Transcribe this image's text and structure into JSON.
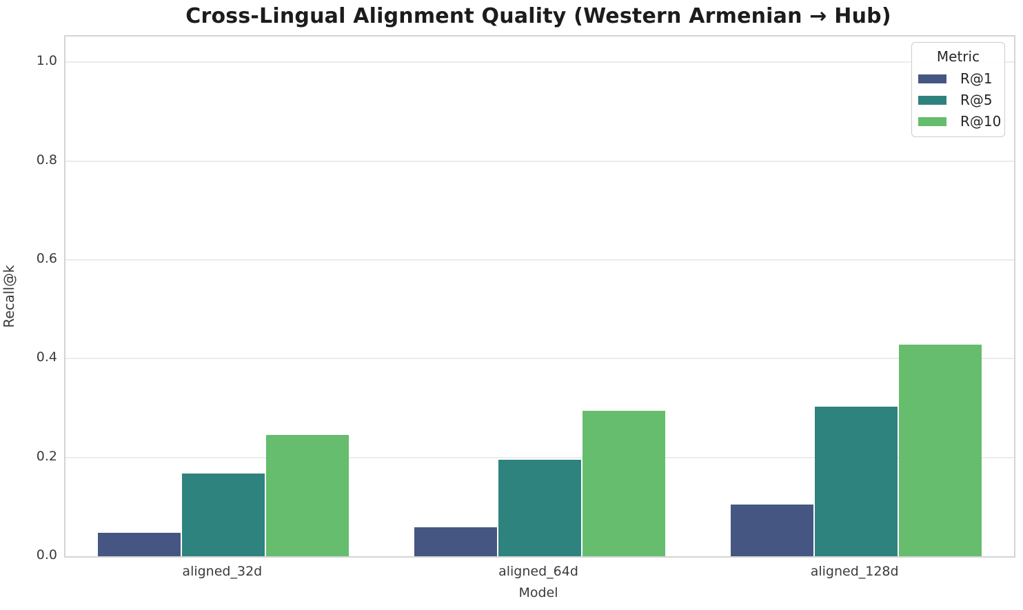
{
  "chart_data": {
    "type": "bar",
    "title": "Cross-Lingual Alignment Quality (Western Armenian → Hub)",
    "xlabel": "Model",
    "ylabel": "Recall@k",
    "categories": [
      "aligned_32d",
      "aligned_64d",
      "aligned_128d"
    ],
    "series": [
      {
        "name": "R@1",
        "color": "#465682",
        "values": [
          0.048,
          0.058,
          0.105
        ]
      },
      {
        "name": "R@5",
        "color": "#2E837E",
        "values": [
          0.168,
          0.196,
          0.303
        ]
      },
      {
        "name": "R@10",
        "color": "#66BD6D",
        "values": [
          0.245,
          0.294,
          0.428
        ]
      }
    ],
    "yticks": [
      0.0,
      0.2,
      0.4,
      0.6,
      0.8,
      1.0
    ],
    "ylim": [
      0,
      1.052
    ],
    "grid": true,
    "legend": {
      "title": "Metric",
      "position": "upper right"
    }
  }
}
